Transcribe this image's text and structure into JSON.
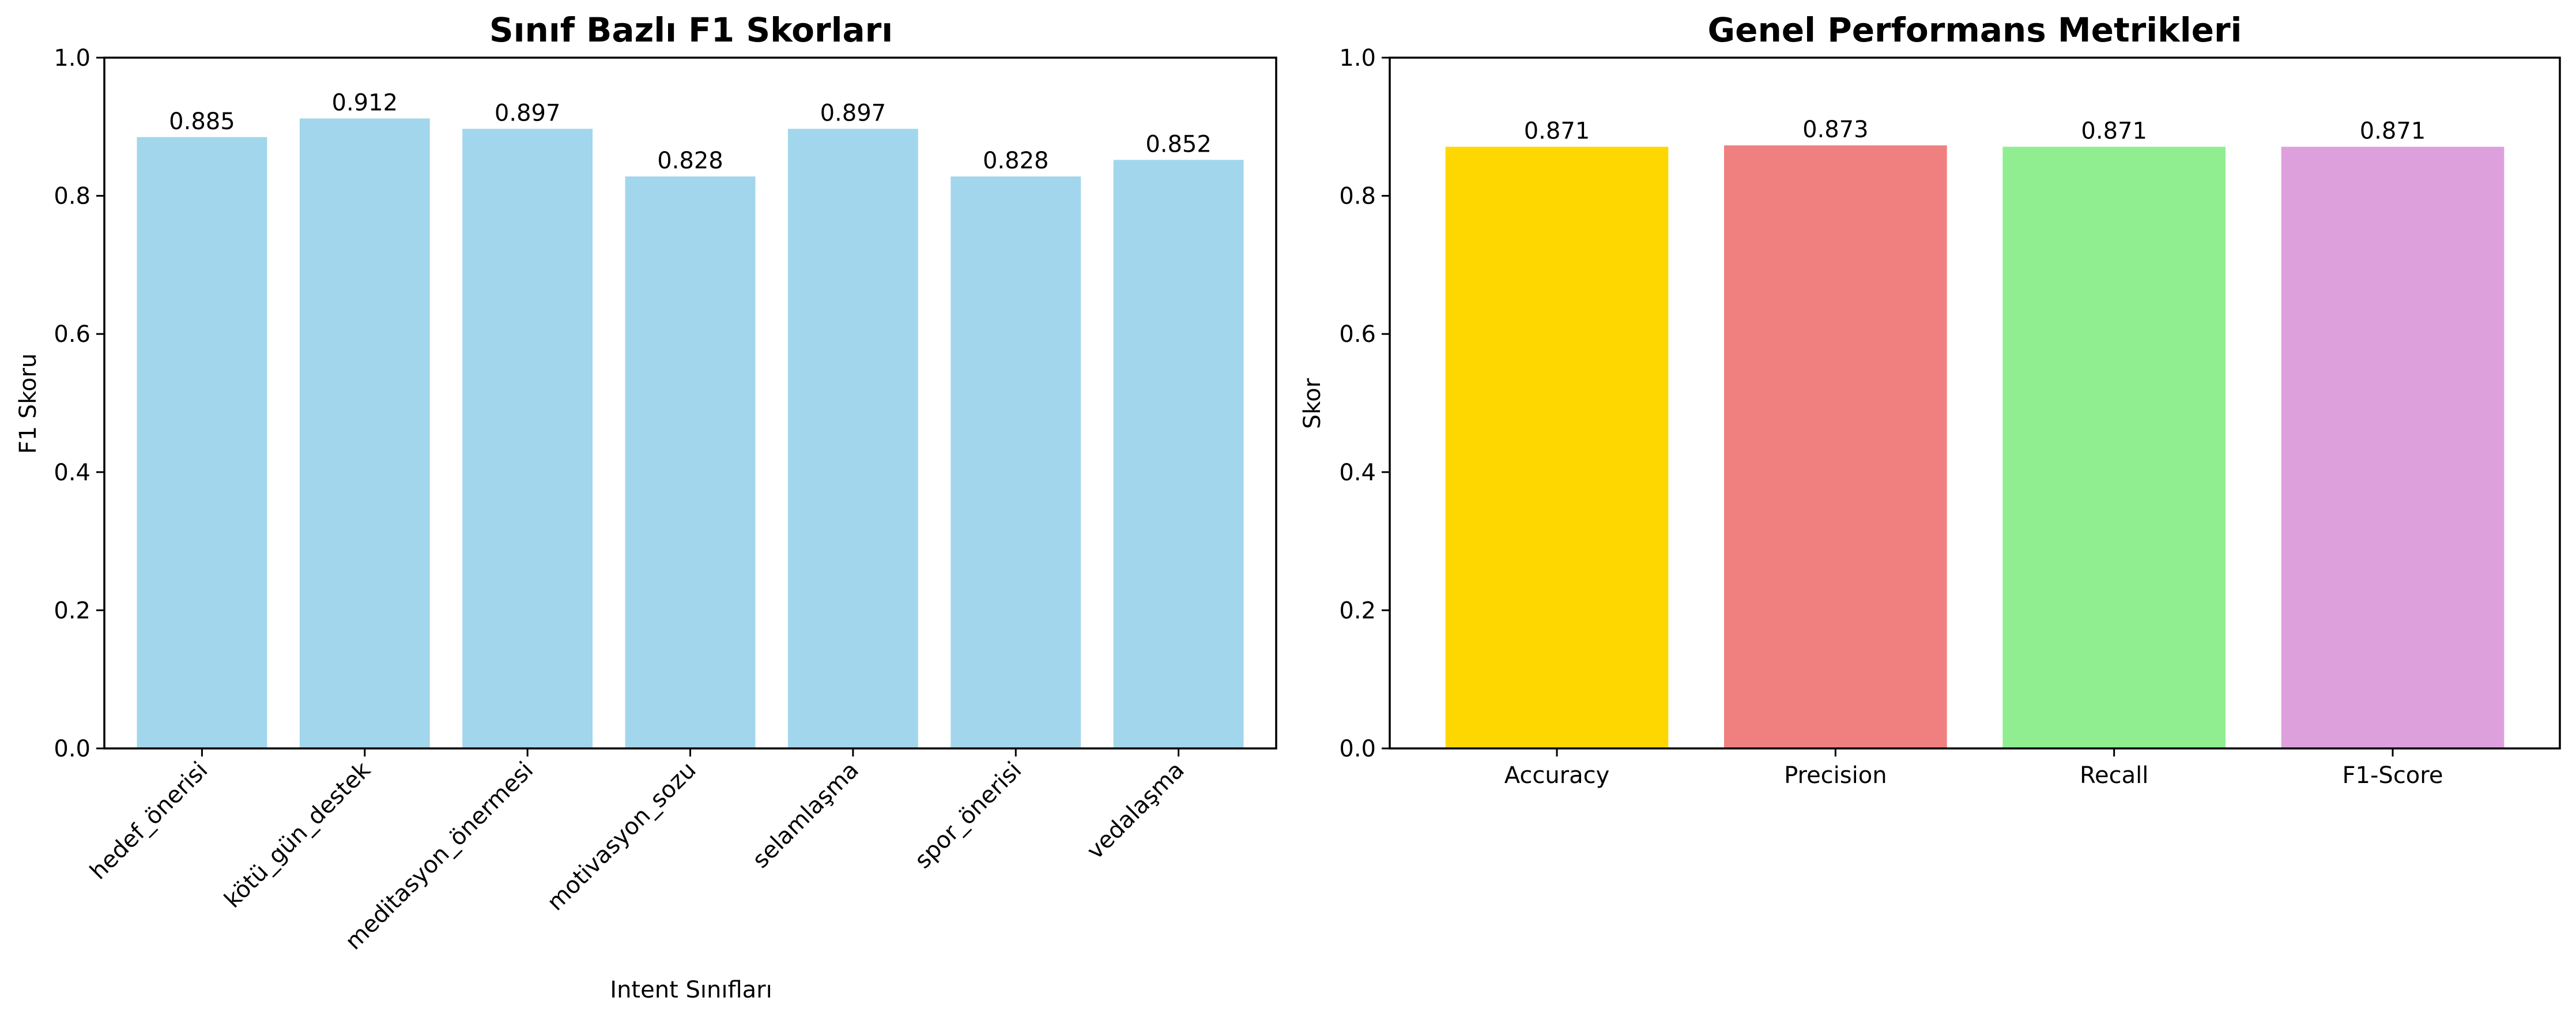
{
  "chart_data": [
    {
      "type": "bar",
      "title": "Sınıf Bazlı F1 Skorları",
      "xlabel": "Intent Sınıfları",
      "ylabel": "F1 Skoru",
      "categories": [
        "hedef_önerisi",
        "kötü_gün_destek",
        "meditasyon_önermesi",
        "motivasyon_sozu",
        "selamlaşma",
        "spor_önerisi",
        "vedalaşma"
      ],
      "values": [
        0.885,
        0.912,
        0.897,
        0.828,
        0.897,
        0.828,
        0.852
      ],
      "data_labels": [
        "0.885",
        "0.912",
        "0.897",
        "0.828",
        "0.897",
        "0.828",
        "0.852"
      ],
      "colors": [
        "#a2d6ec"
      ],
      "ylim": [
        0,
        1.0
      ],
      "yticks": [
        "0.0",
        "0.2",
        "0.4",
        "0.6",
        "0.8",
        "1.0"
      ],
      "x_tick_rotation_deg": 45,
      "grid": false
    },
    {
      "type": "bar",
      "title": "Genel Performans Metrikleri",
      "xlabel": "",
      "ylabel": "Skor",
      "categories": [
        "Accuracy",
        "Precision",
        "Recall",
        "F1-Score"
      ],
      "values": [
        0.871,
        0.873,
        0.871,
        0.871
      ],
      "data_labels": [
        "0.871",
        "0.873",
        "0.871",
        "0.871"
      ],
      "colors": [
        "#ffd700",
        "#f08080",
        "#90ee90",
        "#dda0dd"
      ],
      "ylim": [
        0,
        1.0
      ],
      "yticks": [
        "0.0",
        "0.2",
        "0.4",
        "0.6",
        "0.8",
        "1.0"
      ],
      "x_tick_rotation_deg": 0,
      "grid": false
    }
  ]
}
